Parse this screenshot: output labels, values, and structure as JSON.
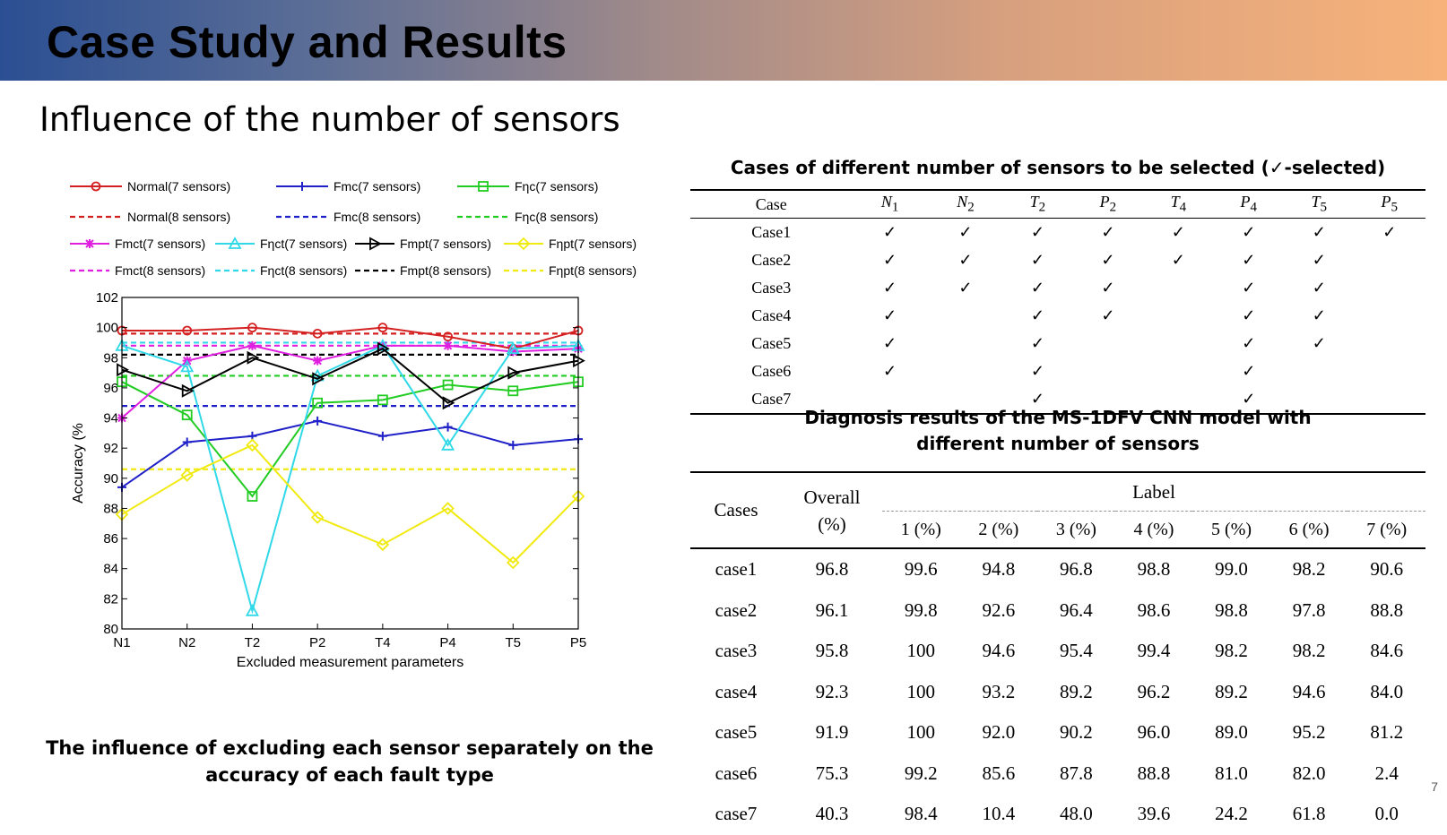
{
  "header": {
    "title": "Case Study and Results"
  },
  "subtitle": "Influence of the number of sensors",
  "caption": "The influence of excluding each sensor separately on the accuracy of each fault type",
  "chart_data": {
    "type": "line",
    "categories": [
      "N1",
      "N2",
      "T2",
      "P2",
      "T4",
      "P4",
      "T5",
      "P5"
    ],
    "xlabel": "Excluded measurement parameters",
    "ylabel": "Accuracy (%",
    "ylim": [
      80,
      102
    ],
    "yticks": [
      80,
      82,
      84,
      86,
      88,
      90,
      92,
      94,
      96,
      98,
      100,
      102
    ],
    "grid": false,
    "legend_position": "top",
    "series": [
      {
        "name": "Normal(7 sensors)",
        "color": "#d42020",
        "marker": "circle",
        "values": [
          99.8,
          99.8,
          100.0,
          99.6,
          100.0,
          99.4,
          98.6,
          99.8
        ]
      },
      {
        "name": "Fmc(7 sensors)",
        "color": "#2020c8",
        "marker": "plus",
        "values": [
          89.4,
          92.4,
          92.8,
          93.8,
          92.8,
          93.4,
          92.2,
          92.6
        ]
      },
      {
        "name": "Fηc(7 sensors)",
        "color": "#22cc22",
        "marker": "square",
        "values": [
          96.4,
          94.2,
          88.8,
          95.0,
          95.2,
          96.2,
          95.8,
          96.4
        ]
      },
      {
        "name": "Fmct(7 sensors)",
        "color": "#e020e0",
        "marker": "star",
        "values": [
          94.0,
          97.8,
          98.8,
          97.8,
          98.8,
          98.8,
          98.4,
          98.6
        ]
      },
      {
        "name": "Fηct(7 sensors)",
        "color": "#30d8e8",
        "marker": "triangle-up",
        "values": [
          98.8,
          97.4,
          81.2,
          96.8,
          98.8,
          92.2,
          98.6,
          98.8
        ]
      },
      {
        "name": "Fmpt(7 sensors)",
        "color": "#000000",
        "marker": "triangle-right",
        "values": [
          97.2,
          95.8,
          98.0,
          96.6,
          98.6,
          95.0,
          97.0,
          97.8
        ]
      },
      {
        "name": "Fηpt(7 sensors)",
        "color": "#f0ea10",
        "marker": "diamond",
        "values": [
          87.6,
          90.2,
          92.2,
          87.4,
          85.6,
          88.0,
          84.4,
          88.8
        ]
      }
    ],
    "reference_lines": [
      {
        "name": "Normal(8 sensors)",
        "color": "#d42020",
        "value": 99.6
      },
      {
        "name": "Fmc(8 sensors)",
        "color": "#2020c8",
        "value": 94.8
      },
      {
        "name": "Fηc(8 sensors)",
        "color": "#22cc22",
        "value": 96.8
      },
      {
        "name": "Fmct(8 sensors)",
        "color": "#e020e0",
        "value": 98.8
      },
      {
        "name": "Fηct(8 sensors)",
        "color": "#30d8e8",
        "value": 99.0
      },
      {
        "name": "Fmpt(8 sensors)",
        "color": "#000000",
        "value": 98.2
      },
      {
        "name": "Fηpt(8 sensors)",
        "color": "#f0ea10",
        "value": 90.6
      }
    ]
  },
  "table1": {
    "title": "Cases of different number of sensors to be selected (✓-selected)",
    "header_case": "Case",
    "columns": [
      {
        "main": "N",
        "sub": "1"
      },
      {
        "main": "N",
        "sub": "2"
      },
      {
        "main": "T",
        "sub": "2"
      },
      {
        "main": "P",
        "sub": "2"
      },
      {
        "main": "T",
        "sub": "4"
      },
      {
        "main": "P",
        "sub": "4"
      },
      {
        "main": "T",
        "sub": "5"
      },
      {
        "main": "P",
        "sub": "5"
      }
    ],
    "check": "✓",
    "rows": [
      {
        "case": "Case1",
        "sel": [
          1,
          1,
          1,
          1,
          1,
          1,
          1,
          1
        ]
      },
      {
        "case": "Case2",
        "sel": [
          1,
          1,
          1,
          1,
          1,
          1,
          1,
          0
        ]
      },
      {
        "case": "Case3",
        "sel": [
          1,
          1,
          1,
          1,
          0,
          1,
          1,
          0
        ]
      },
      {
        "case": "Case4",
        "sel": [
          1,
          0,
          1,
          1,
          0,
          1,
          1,
          0
        ]
      },
      {
        "case": "Case5",
        "sel": [
          1,
          0,
          1,
          0,
          0,
          1,
          1,
          0
        ]
      },
      {
        "case": "Case6",
        "sel": [
          1,
          0,
          1,
          0,
          0,
          1,
          0,
          0
        ]
      },
      {
        "case": "Case7",
        "sel": [
          0,
          0,
          1,
          0,
          0,
          1,
          0,
          0
        ]
      }
    ]
  },
  "table2": {
    "title_line1": "Diagnosis results of the MS-1DFV CNN model with",
    "title_line2": "different number of sensors",
    "header_cases": "Cases",
    "header_overall_1": "Overall",
    "header_overall_2": "(%)",
    "header_label": "Label",
    "label_columns": [
      "1 (%)",
      "2 (%)",
      "3 (%)",
      "4 (%)",
      "5 (%)",
      "6 (%)",
      "7 (%)"
    ],
    "rows": [
      [
        "case1",
        "96.8",
        "99.6",
        "94.8",
        "96.8",
        "98.8",
        "99.0",
        "98.2",
        "90.6"
      ],
      [
        "case2",
        "96.1",
        "99.8",
        "92.6",
        "96.4",
        "98.6",
        "98.8",
        "97.8",
        "88.8"
      ],
      [
        "case3",
        "95.8",
        "100",
        "94.6",
        "95.4",
        "99.4",
        "98.2",
        "98.2",
        "84.6"
      ],
      [
        "case4",
        "92.3",
        "100",
        "93.2",
        "89.2",
        "96.2",
        "89.2",
        "94.6",
        "84.0"
      ],
      [
        "case5",
        "91.9",
        "100",
        "92.0",
        "90.2",
        "96.0",
        "89.0",
        "95.2",
        "81.2"
      ],
      [
        "case6",
        "75.3",
        "99.2",
        "85.6",
        "87.8",
        "88.8",
        "81.0",
        "82.0",
        "2.4"
      ],
      [
        "case7",
        "40.3",
        "98.4",
        "10.4",
        "48.0",
        "39.6",
        "24.2",
        "61.8",
        "0.0"
      ]
    ]
  },
  "page_number": "7"
}
